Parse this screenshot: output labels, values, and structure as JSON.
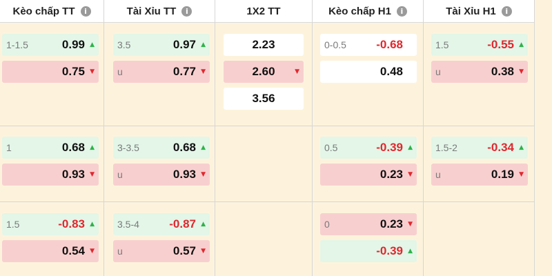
{
  "headers": [
    "Kèo chấp TT",
    "Tài Xỉu TT",
    "1X2 TT",
    "Kèo chấp H1",
    "Tài Xỉu H1"
  ],
  "info_icon_glyph": "i",
  "arrows": {
    "up": "▲",
    "down": "▼"
  },
  "rows": [
    {
      "keo_tt": [
        {
          "label": "1-1.5",
          "value": "0.99",
          "arrow": "up"
        },
        {
          "label": "",
          "value": "0.75",
          "arrow": "down"
        }
      ],
      "tx_tt": [
        {
          "label": "3.5",
          "value": "0.97",
          "arrow": "up"
        },
        {
          "label": "u",
          "value": "0.77",
          "arrow": "down"
        }
      ],
      "x12_tt": [
        {
          "value": "2.23",
          "arrow": ""
        },
        {
          "value": "2.60",
          "arrow": "down"
        },
        {
          "value": "3.56",
          "arrow": ""
        }
      ],
      "keo_h1": [
        {
          "label": "0-0.5",
          "value": "-0.68",
          "arrow": ""
        },
        {
          "label": "",
          "value": "0.48",
          "arrow": ""
        }
      ],
      "tx_h1": [
        {
          "label": "1.5",
          "value": "-0.55",
          "arrow": "up"
        },
        {
          "label": "u",
          "value": "0.38",
          "arrow": "down"
        }
      ]
    },
    {
      "keo_tt": [
        {
          "label": "1",
          "value": "0.68",
          "arrow": "up"
        },
        {
          "label": "",
          "value": "0.93",
          "arrow": "down"
        }
      ],
      "tx_tt": [
        {
          "label": "3-3.5",
          "value": "0.68",
          "arrow": "up"
        },
        {
          "label": "u",
          "value": "0.93",
          "arrow": "down"
        }
      ],
      "keo_h1": [
        {
          "label": "0.5",
          "value": "-0.39",
          "arrow": "up"
        },
        {
          "label": "",
          "value": "0.23",
          "arrow": "down"
        }
      ],
      "tx_h1": [
        {
          "label": "1.5-2",
          "value": "-0.34",
          "arrow": "up"
        },
        {
          "label": "u",
          "value": "0.19",
          "arrow": "down"
        }
      ]
    },
    {
      "keo_tt": [
        {
          "label": "1.5",
          "value": "-0.83",
          "arrow": "up"
        },
        {
          "label": "",
          "value": "0.54",
          "arrow": "down"
        }
      ],
      "tx_tt": [
        {
          "label": "3.5-4",
          "value": "-0.87",
          "arrow": "up"
        },
        {
          "label": "u",
          "value": "0.57",
          "arrow": "down"
        }
      ],
      "keo_h1": [
        {
          "label": "0",
          "value": "0.23",
          "arrow": "down"
        },
        {
          "label": "",
          "value": "-0.39",
          "arrow": "up"
        }
      ]
    }
  ],
  "colors": {
    "background": "#fdf3dc",
    "up_cell": "#e3f6e8",
    "down_cell": "#f8cfcf",
    "plain_cell": "#ffffff",
    "up_arrow": "#2eb24a",
    "down_arrow": "#e0282e",
    "negative_value": "#e0282e"
  }
}
